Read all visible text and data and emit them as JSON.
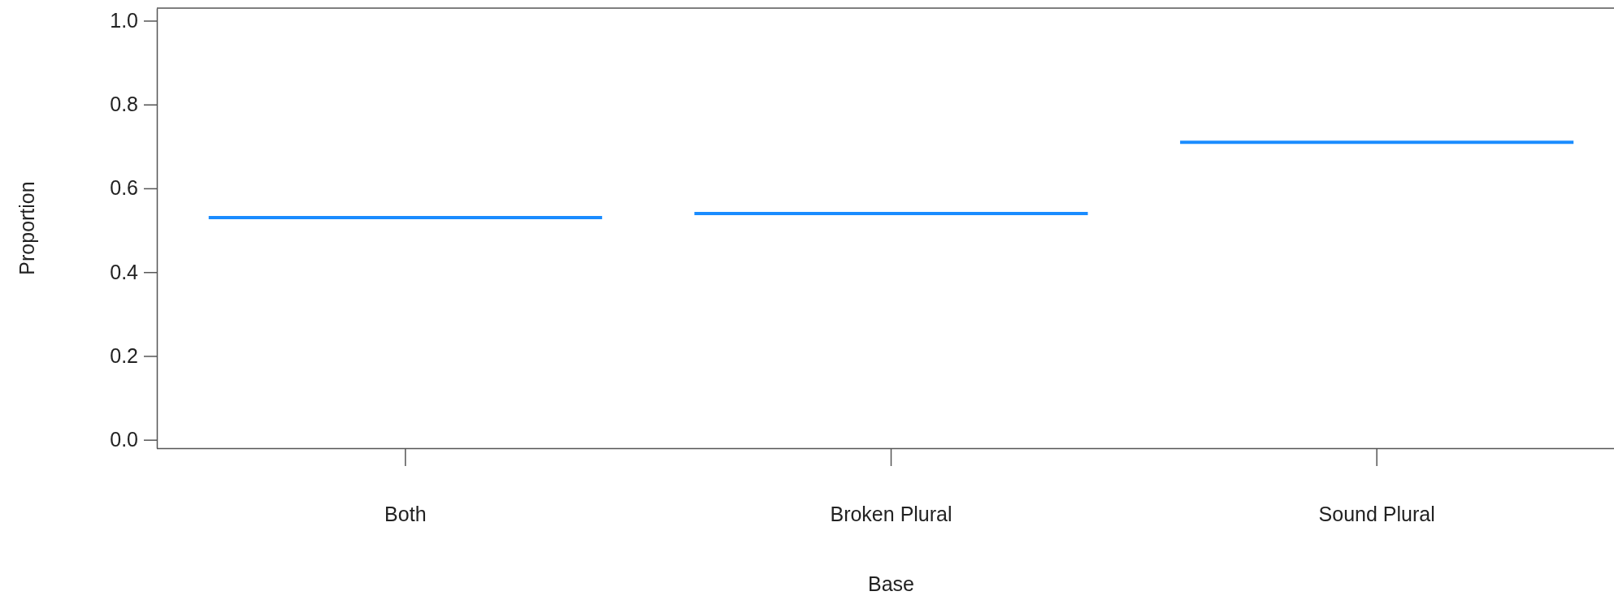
{
  "chart_data": {
    "xlabel": "Base",
    "ylabel": "Proportion",
    "categories": [
      "Both",
      "Broken Plural",
      "Sound Plural"
    ],
    "type": "box",
    "color": "#1a8cff",
    "boxes": [
      {
        "low": 0.53,
        "q1": 0.53,
        "median": 0.53,
        "q3": 0.53,
        "high": 0.53
      },
      {
        "low": 0.54,
        "q1": 0.54,
        "median": 0.54,
        "q3": 0.54,
        "high": 0.54
      },
      {
        "low": 0.71,
        "q1": 0.71,
        "median": 0.71,
        "q3": 0.71,
        "high": 0.71
      }
    ],
    "ylim": [
      -0.02,
      1.03
    ],
    "yticks": [
      {
        "value": 0,
        "label": "0.0"
      },
      {
        "value": 0.2,
        "label": "0.2"
      },
      {
        "value": 0.4,
        "label": "0.4"
      },
      {
        "value": 0.6,
        "label": "0.6"
      },
      {
        "value": 0.8,
        "label": "0.8"
      },
      {
        "value": 1,
        "label": "1.0"
      }
    ],
    "grid": false
  }
}
